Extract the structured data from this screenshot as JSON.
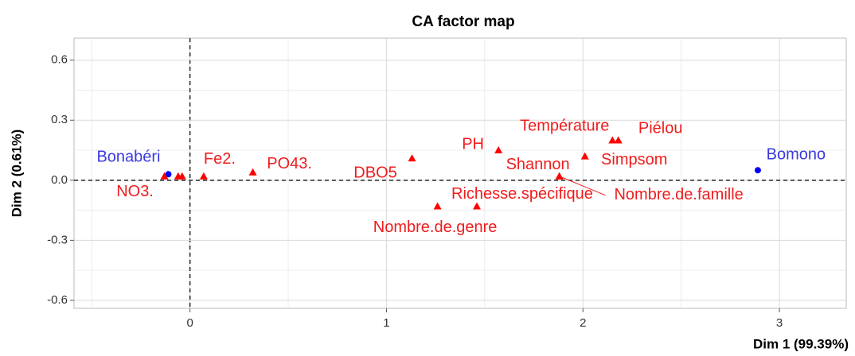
{
  "chart_data": {
    "type": "scatter",
    "title": "CA factor map",
    "x_label": "Dim 1 (99.39%)",
    "y_label": "Dim 2 (0.61%)",
    "xlim": [
      -0.59,
      3.34
    ],
    "ylim": [
      -0.64,
      0.71
    ],
    "xticks": [
      0,
      1,
      2,
      3
    ],
    "yticks": [
      -0.6,
      -0.3,
      {
        "value": 0,
        "label": "0.0"
      },
      0.3,
      0.6
    ],
    "grid": true,
    "series": [
      {
        "color": "#0000ff",
        "label_color": "#3a3ae0",
        "marker": "circle",
        "labels": [
          "Bonabéri",
          "Bomono"
        ],
        "x": [
          -0.11,
          2.89
        ],
        "y": [
          0.03,
          0.05
        ]
      },
      {
        "color": "#ff0000",
        "label_color": "#f01c1c",
        "marker": "triangle",
        "labels": [
          "NO3.",
          null,
          null,
          "Fe2.",
          "PO43.",
          "DBO5",
          "PH",
          "Température",
          "Piélou",
          "Simpsom",
          "Shannon",
          "Nombre.de.famille",
          "Richesse.spécifique",
          "Nombre.de.genre"
        ],
        "x": [
          -0.13,
          -0.06,
          -0.04,
          0.07,
          0.32,
          1.13,
          1.57,
          2.15,
          2.18,
          2.01,
          1.88,
          1.88,
          1.46,
          1.26
        ],
        "y": [
          0.02,
          0.02,
          0.02,
          0.02,
          0.04,
          0.11,
          0.15,
          0.2,
          0.2,
          0.12,
          0.02,
          0.02,
          -0.13,
          -0.13
        ]
      }
    ]
  }
}
